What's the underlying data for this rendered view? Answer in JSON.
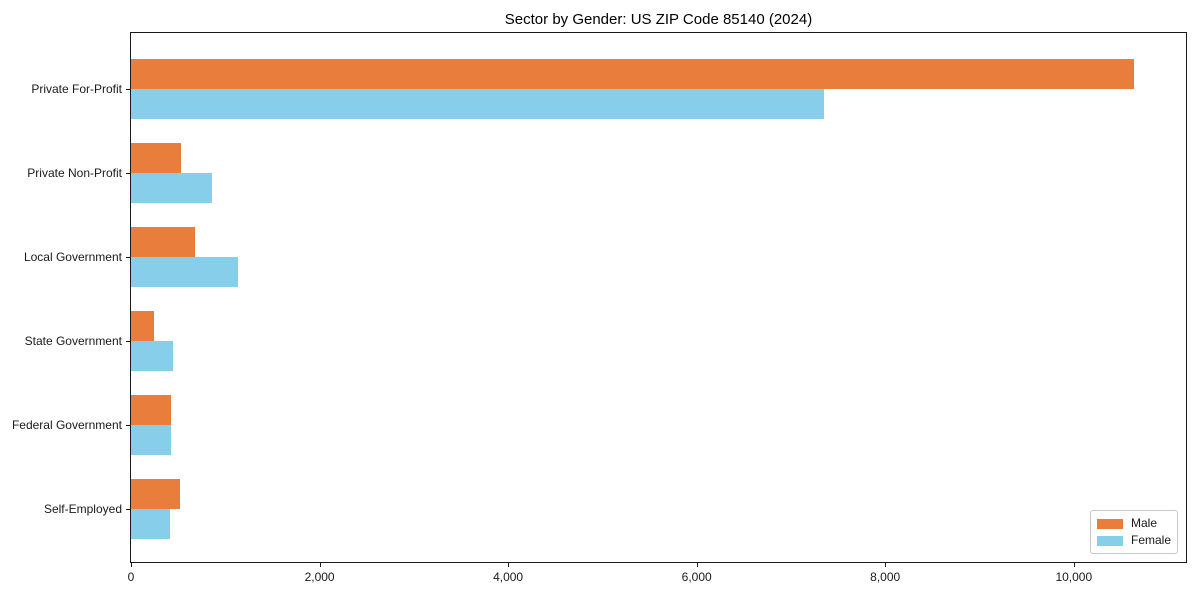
{
  "chart_data": {
    "type": "bar",
    "orientation": "horizontal",
    "title": "Sector by Gender: US ZIP Code 85140 (2024)",
    "categories": [
      "Private For-Profit",
      "Private Non-Profit",
      "Local Government",
      "State Government",
      "Federal Government",
      "Self-Employed"
    ],
    "series": [
      {
        "name": "Male",
        "color": "#E87D3C",
        "values": [
          10640,
          530,
          680,
          245,
          425,
          515
        ]
      },
      {
        "name": "Female",
        "color": "#87CEEB",
        "values": [
          7350,
          855,
          1130,
          450,
          420,
          410
        ]
      }
    ],
    "xlabel": "",
    "ylabel": "",
    "xlim": [
      0,
      11190
    ],
    "x_ticks": [
      0,
      2000,
      4000,
      6000,
      8000,
      10000
    ],
    "x_tick_labels": [
      "0",
      "2,000",
      "4,000",
      "6,000",
      "8,000",
      "10,000"
    ],
    "grid": false,
    "legend_position": "lower right",
    "background_color": "#ffffff"
  }
}
